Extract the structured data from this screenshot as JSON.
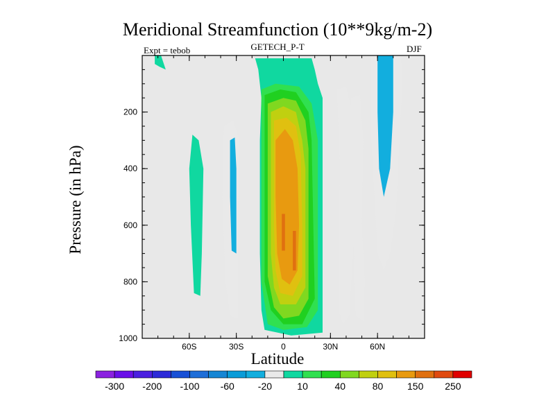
{
  "header": {
    "title": "Meridional Streamfunction (10**9kg/m-2)",
    "subtitle_left": "Expt = tebob",
    "subtitle_center": "GETECH_P-T",
    "subtitle_right": "DJF"
  },
  "chart_data": {
    "type": "heatmap",
    "title": "Meridional Streamfunction (10**9kg/m-2)",
    "xlabel": "Latitude",
    "ylabel": "Pressure (in hPa)",
    "xlim": [
      -90,
      90
    ],
    "ylim": [
      1000,
      0
    ],
    "x_ticks": [
      {
        "value": -60,
        "label": "60S"
      },
      {
        "value": -30,
        "label": "30S"
      },
      {
        "value": 0,
        "label": "0"
      },
      {
        "value": 30,
        "label": "30N"
      },
      {
        "value": 60,
        "label": "60N"
      }
    ],
    "y_ticks": [
      {
        "value": 200,
        "label": "200"
      },
      {
        "value": 400,
        "label": "400"
      },
      {
        "value": 600,
        "label": "600"
      },
      {
        "value": 800,
        "label": "800"
      },
      {
        "value": 1000,
        "label": "1000"
      }
    ],
    "background_color": "#e8e8e8",
    "contour_levels": [
      "-300",
      "-250",
      "-200",
      "-150",
      "-100",
      "-80",
      "-60",
      "-40",
      "-20",
      "-10",
      "10",
      "20",
      "40",
      "60",
      "80",
      "100",
      "150",
      "200",
      "250",
      "300"
    ],
    "colorbar_labels": [
      "-300",
      "-200",
      "-100",
      "-60",
      "-20",
      "10",
      "40",
      "80",
      "150",
      "250"
    ],
    "colorbar_colors": [
      "#8b22e0",
      "#6a10e8",
      "#4b20e0",
      "#2c2ad8",
      "#1850d6",
      "#1e6ed8",
      "#1686d4",
      "#0a9cd8",
      "#12aede",
      "#e9e9e9",
      "#10d8a0",
      "#30e050",
      "#20d020",
      "#80d820",
      "#c0d010",
      "#e0c010",
      "#e89a10",
      "#e07010",
      "#e04a10",
      "#e00000"
    ],
    "regions": [
      {
        "name": "hadley-cell-positive",
        "value": 10,
        "points": [
          [
            -18,
            10
          ],
          [
            18,
            10
          ],
          [
            20,
            50
          ],
          [
            22,
            100
          ],
          [
            25,
            150
          ],
          [
            25,
            980
          ],
          [
            5,
            990
          ],
          [
            -12,
            970
          ],
          [
            -14,
            900
          ],
          [
            -15,
            700
          ],
          [
            -15,
            300
          ],
          [
            -14,
            150
          ],
          [
            -16,
            50
          ]
        ]
      },
      {
        "name": "north-plume-positive",
        "value": 10,
        "points": [
          [
            -2,
            80
          ],
          [
            2,
            80
          ],
          [
            6,
            30
          ],
          [
            10,
            20
          ],
          [
            12,
            80
          ],
          [
            8,
            110
          ],
          [
            0,
            110
          ]
        ]
      },
      {
        "name": "hadley-cell-20",
        "value": 20,
        "points": [
          [
            -14,
            120
          ],
          [
            -5,
            100
          ],
          [
            10,
            110
          ],
          [
            18,
            170
          ],
          [
            22,
            300
          ],
          [
            22,
            900
          ],
          [
            15,
            960
          ],
          [
            0,
            970
          ],
          [
            -10,
            950
          ],
          [
            -14,
            800
          ],
          [
            -14,
            300
          ]
        ]
      },
      {
        "name": "hadley-cell-40",
        "value": 40,
        "points": [
          [
            -12,
            140
          ],
          [
            -2,
            120
          ],
          [
            8,
            130
          ],
          [
            16,
            200
          ],
          [
            18,
            300
          ],
          [
            20,
            860
          ],
          [
            12,
            950
          ],
          [
            0,
            950
          ],
          [
            -8,
            900
          ],
          [
            -12,
            800
          ],
          [
            -12,
            300
          ]
        ]
      },
      {
        "name": "hadley-cell-60",
        "value": 60,
        "points": [
          [
            -10,
            170
          ],
          [
            0,
            150
          ],
          [
            8,
            160
          ],
          [
            14,
            230
          ],
          [
            16,
            330
          ],
          [
            16,
            860
          ],
          [
            10,
            920
          ],
          [
            0,
            930
          ],
          [
            -6,
            890
          ],
          [
            -10,
            780
          ],
          [
            -10,
            330
          ]
        ]
      },
      {
        "name": "hadley-cell-80",
        "value": 80,
        "points": [
          [
            -8,
            200
          ],
          [
            0,
            180
          ],
          [
            8,
            200
          ],
          [
            12,
            300
          ],
          [
            14,
            400
          ],
          [
            14,
            820
          ],
          [
            8,
            880
          ],
          [
            -2,
            880
          ],
          [
            -6,
            820
          ],
          [
            -8,
            700
          ],
          [
            -8,
            300
          ]
        ]
      },
      {
        "name": "hadley-cell-100",
        "value": 100,
        "points": [
          [
            -6,
            230
          ],
          [
            2,
            220
          ],
          [
            8,
            250
          ],
          [
            11,
            350
          ],
          [
            12,
            600
          ],
          [
            12,
            780
          ],
          [
            6,
            850
          ],
          [
            -2,
            840
          ],
          [
            -5,
            760
          ],
          [
            -6,
            600
          ],
          [
            -6,
            300
          ]
        ]
      },
      {
        "name": "hadley-cell-150",
        "value": 150,
        "points": [
          [
            -5,
            300
          ],
          [
            1,
            260
          ],
          [
            6,
            300
          ],
          [
            9,
            400
          ],
          [
            10,
            600
          ],
          [
            9,
            760
          ],
          [
            4,
            810
          ],
          [
            -1,
            790
          ],
          [
            -4,
            700
          ],
          [
            -5,
            500
          ]
        ]
      },
      {
        "name": "hadley-cell-200a",
        "value": 200,
        "points": [
          [
            -1,
            560
          ],
          [
            1,
            560
          ],
          [
            1,
            690
          ],
          [
            -1,
            690
          ]
        ]
      },
      {
        "name": "hadley-cell-200b",
        "value": 200,
        "points": [
          [
            6,
            620
          ],
          [
            8,
            620
          ],
          [
            8,
            760
          ],
          [
            6,
            760
          ]
        ]
      },
      {
        "name": "south-ferrel-negative",
        "value": -10,
        "points": [
          [
            -38,
            250
          ],
          [
            -32,
            230
          ],
          [
            -28,
            300
          ],
          [
            -29,
            600
          ],
          [
            -29,
            930
          ],
          [
            -34,
            920
          ],
          [
            -37,
            800
          ],
          [
            -39,
            500
          ]
        ]
      },
      {
        "name": "south-ferrel-20",
        "value": -20,
        "points": [
          [
            -34,
            300
          ],
          [
            -31,
            290
          ],
          [
            -30,
            400
          ],
          [
            -30,
            700
          ],
          [
            -33,
            690
          ],
          [
            -34,
            500
          ]
        ]
      },
      {
        "name": "south-polar-positive",
        "value": 10,
        "points": [
          [
            -58,
            280
          ],
          [
            -54,
            300
          ],
          [
            -51,
            400
          ],
          [
            -52,
            700
          ],
          [
            -53,
            850
          ],
          [
            -57,
            840
          ],
          [
            -59,
            600
          ],
          [
            -60,
            400
          ]
        ]
      },
      {
        "name": "north-polar-top-positive",
        "value": 10,
        "points": [
          [
            -82,
            0
          ],
          [
            -78,
            0
          ],
          [
            -75,
            50
          ],
          [
            -74,
            90
          ],
          [
            -75,
            50
          ],
          [
            -79,
            40
          ],
          [
            -82,
            30
          ]
        ]
      },
      {
        "name": "north-ferrel-negative-a",
        "value": -10,
        "points": [
          [
            34,
            120
          ],
          [
            40,
            110
          ],
          [
            44,
            200
          ],
          [
            45,
            350
          ],
          [
            45,
            650
          ],
          [
            42,
            920
          ],
          [
            38,
            950
          ],
          [
            35,
            900
          ],
          [
            35,
            700
          ],
          [
            36,
            400
          ]
        ]
      },
      {
        "name": "north-ferrel-negative-b",
        "value": -10,
        "points": [
          [
            43,
            150
          ],
          [
            49,
            140
          ],
          [
            51,
            300
          ],
          [
            50,
            600
          ],
          [
            52,
            800
          ],
          [
            51,
            940
          ],
          [
            46,
            920
          ],
          [
            45,
            700
          ],
          [
            44,
            400
          ]
        ]
      },
      {
        "name": "north-polar-negative",
        "value": -10,
        "points": [
          [
            56,
            0
          ],
          [
            75,
            0
          ],
          [
            76,
            100
          ],
          [
            74,
            300
          ],
          [
            72,
            550
          ],
          [
            68,
            700
          ],
          [
            64,
            760
          ],
          [
            60,
            700
          ],
          [
            58,
            500
          ],
          [
            56,
            300
          ]
        ]
      },
      {
        "name": "north-polar-negative-20",
        "value": -20,
        "points": [
          [
            60,
            0
          ],
          [
            70,
            0
          ],
          [
            70,
            200
          ],
          [
            68,
            400
          ],
          [
            64,
            500
          ],
          [
            61,
            400
          ],
          [
            60,
            200
          ]
        ]
      }
    ],
    "legend": "bottom"
  }
}
